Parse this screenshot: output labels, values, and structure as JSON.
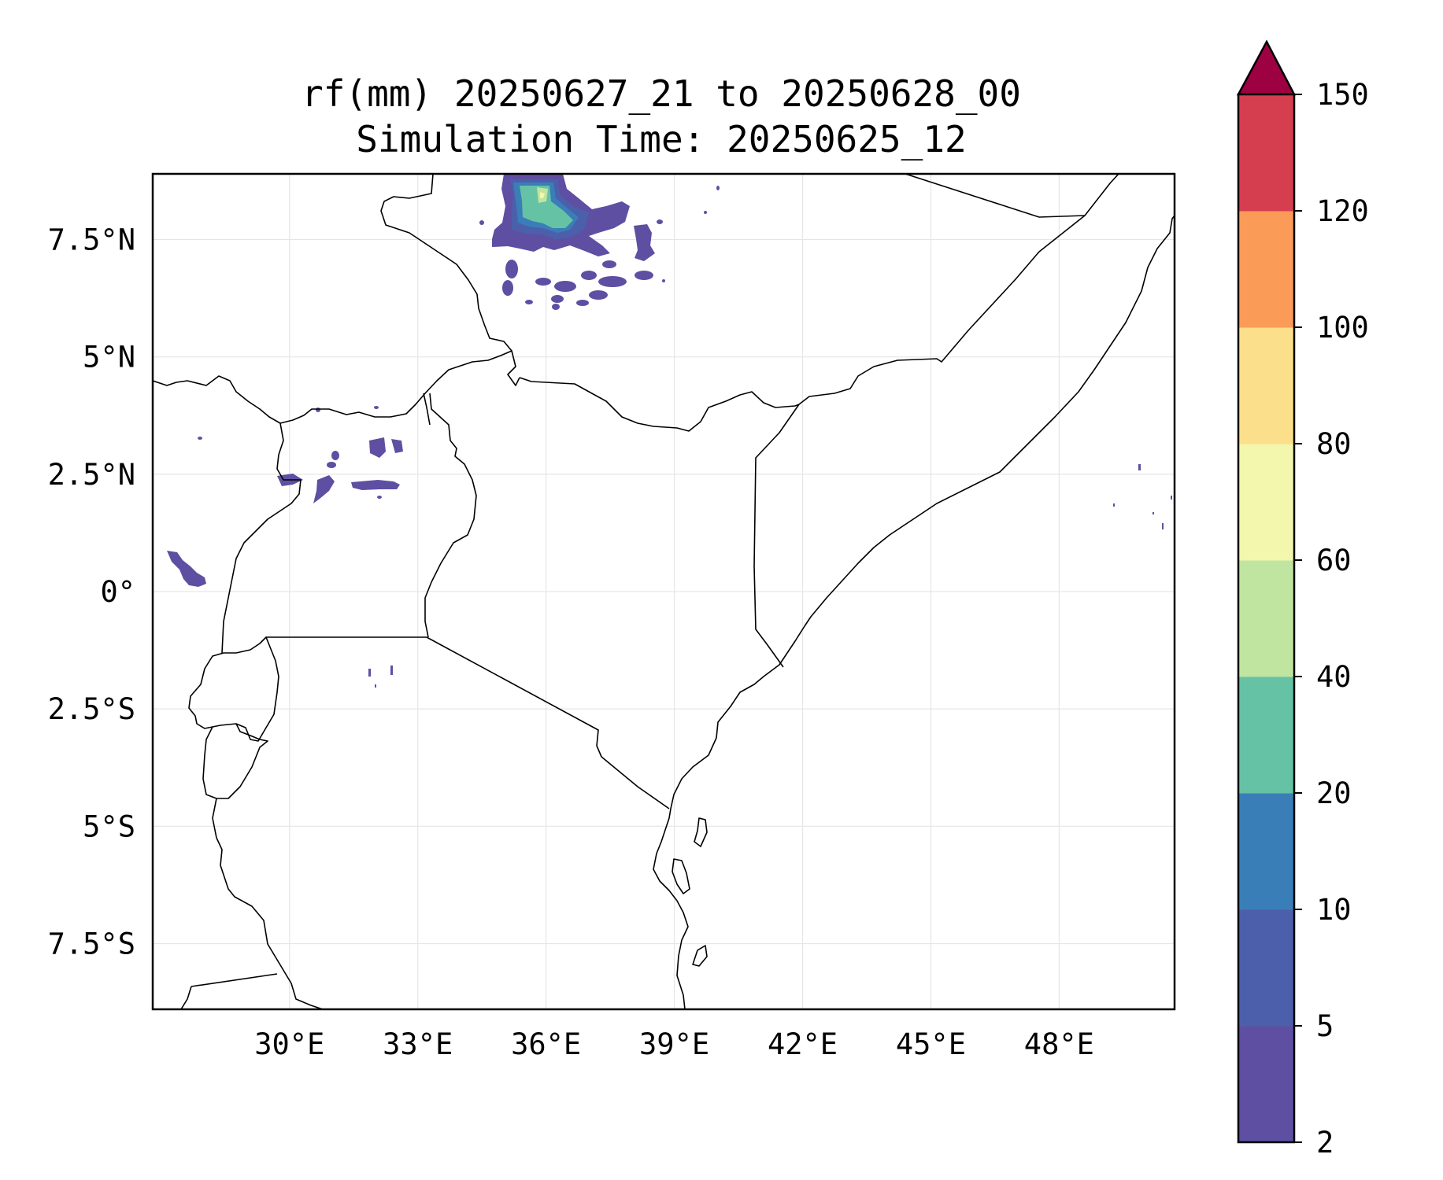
{
  "title": {
    "line1": "rf(mm) 20250627_21 to 20250628_00",
    "line2": "Simulation Time: 20250625_12"
  },
  "map": {
    "lon_range": [
      26.8,
      50.7
    ],
    "lat_range": [
      -8.9,
      8.9
    ],
    "x_ticks": [
      "30°E",
      "33°E",
      "36°E",
      "39°E",
      "42°E",
      "45°E",
      "48°E"
    ],
    "y_ticks": [
      "7.5°N",
      "5°N",
      "2.5°N",
      "0°",
      "2.5°S",
      "5°S",
      "7.5°S"
    ],
    "gridlines": true,
    "rain_cells": [
      {
        "region": "South Sudan / Ethiopia border",
        "level": "2-5",
        "approx_lon": 36.5,
        "approx_lat": 8.1
      },
      {
        "region": "northern Uganda",
        "level": "2-5",
        "approx_lon": 33.5,
        "approx_lat": 2.8
      },
      {
        "region": "eastern DRC",
        "level": "2-5",
        "approx_lon": 27.6,
        "approx_lat": 0.4
      }
    ]
  },
  "colorbar": {
    "labels": [
      "2",
      "5",
      "10",
      "20",
      "40",
      "60",
      "80",
      "100",
      "120",
      "150"
    ],
    "colors": [
      "#5e4fa2",
      "#4c5fab",
      "#3a7eb8",
      "#66c2a5",
      "#bfe5a0",
      "#f3f6ad",
      "#fbdf8b",
      "#fa9b58",
      "#d53e4f"
    ],
    "extend_color": "#9e0142"
  }
}
